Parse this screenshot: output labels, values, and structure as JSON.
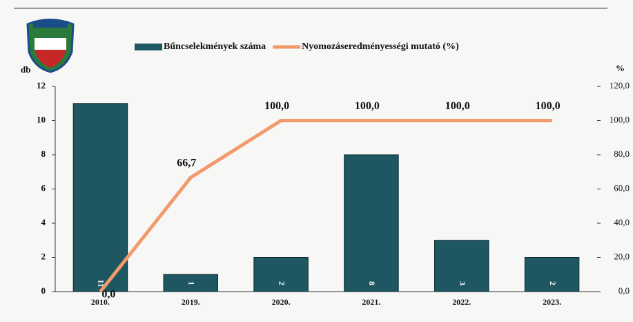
{
  "chart_data": {
    "type": "bar",
    "categories": [
      "2010.",
      "2019.",
      "2020.",
      "2021.",
      "2022.",
      "2023."
    ],
    "y_label": "db",
    "y2_label": "%",
    "ylim": [
      0,
      12
    ],
    "yticks": [
      0,
      2,
      4,
      6,
      8,
      10,
      12
    ],
    "y2lim": [
      0,
      120
    ],
    "y2ticks": [
      {
        "value": 0,
        "label": "0,0"
      },
      {
        "value": 20,
        "label": "20,0"
      },
      {
        "value": 40,
        "label": "40,0"
      },
      {
        "value": 60,
        "label": "60,0"
      },
      {
        "value": 80,
        "label": "80,0"
      },
      {
        "value": 100,
        "label": "100,0"
      },
      {
        "value": 120,
        "label": "120,0"
      }
    ],
    "legend": "top",
    "series": [
      {
        "name": "Bűncselekmények száma",
        "type": "bar",
        "color": "#1e5661",
        "values": [
          11,
          1,
          2,
          8,
          3,
          2
        ]
      },
      {
        "name": "Nyomozáseredményességi mutató (%)",
        "type": "line",
        "axis": "y2",
        "color": "#f39a6c",
        "values": [
          0,
          66.7,
          100,
          100,
          100,
          100
        ],
        "value_labels": [
          "0,0",
          "66,7",
          "100,0",
          "100,0",
          "100,0",
          "100,0"
        ]
      }
    ]
  }
}
